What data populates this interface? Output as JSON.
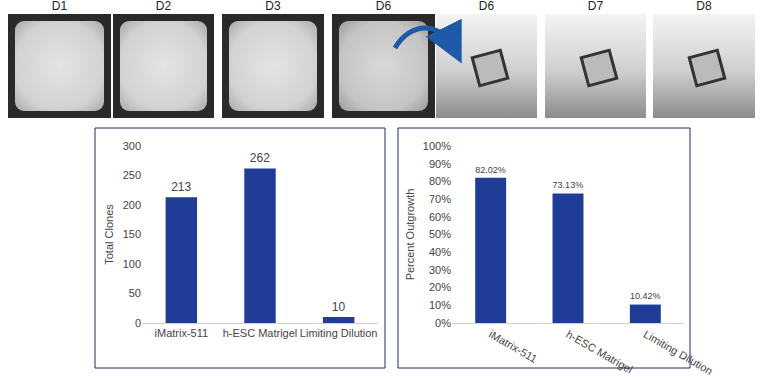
{
  "image_strip": {
    "labels": [
      "D1",
      "D2",
      "D3",
      "D6",
      "D6",
      "D7",
      "D8"
    ]
  },
  "chart_data": [
    {
      "type": "bar",
      "categories": [
        "iMatrix-511",
        "h-ESC Matrigel",
        "Limiting Dilution"
      ],
      "values": [
        213,
        262,
        10
      ],
      "color": "#1f3c96",
      "ylabel": "Total Clones",
      "ylim": [
        0,
        300
      ],
      "yticks": [
        0,
        50,
        100,
        150,
        200,
        250,
        300
      ],
      "grid": false,
      "data_labels": true
    },
    {
      "type": "bar",
      "categories": [
        "iMatrix-511",
        "h-ESC Matrigel",
        "Limiting Dilution"
      ],
      "values": [
        82.02,
        73.13,
        10.42
      ],
      "value_labels": [
        "82.02%",
        "73.13%",
        "10.42%"
      ],
      "color": "#1f3c96",
      "ylabel": "Percent Outgrowth",
      "ylim": [
        0,
        100
      ],
      "yticks": [
        {
          "value": 0,
          "label": "0%"
        },
        {
          "value": 10,
          "label": "10%"
        },
        {
          "value": 20,
          "label": "20%"
        },
        {
          "value": 30,
          "label": "30%"
        },
        {
          "value": 40,
          "label": "40%"
        },
        {
          "value": 50,
          "label": "50%"
        },
        {
          "value": 60,
          "label": "60%"
        },
        {
          "value": 70,
          "label": "70%"
        },
        {
          "value": 80,
          "label": "80%"
        },
        {
          "value": 90,
          "label": "90%"
        },
        {
          "value": 100,
          "label": "100%"
        }
      ],
      "grid": false,
      "data_labels": true
    }
  ]
}
